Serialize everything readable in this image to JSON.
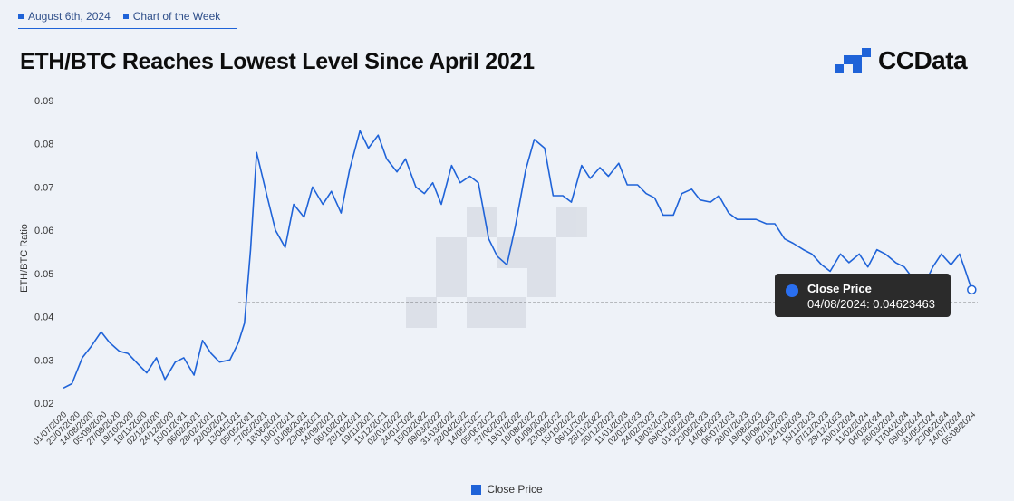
{
  "header": {
    "date": "August 6th, 2024",
    "tag": "Chart of the Week",
    "title": "ETH/BTC Reaches Lowest Level Since April 2021",
    "brand": "CCData"
  },
  "tooltip": {
    "series": "Close Price",
    "text": "04/08/2024: 0.04623463"
  },
  "colors": {
    "line": "#1f63d8",
    "accent": "#1f63d8",
    "tooltip_bg": "#2b2b2b"
  },
  "chart_data": {
    "type": "line",
    "title": "ETH/BTC Reaches Lowest Level Since April 2021",
    "ylabel": "ETH/BTC Ratio",
    "xlabel": "",
    "ylim": [
      0.02,
      0.09
    ],
    "yticks": [
      "0.02",
      "0.03",
      "0.04",
      "0.05",
      "0.06",
      "0.07",
      "0.08",
      "0.09"
    ],
    "legend": "bottom-center",
    "grid": false,
    "reference_line": 0.0432,
    "highlight": {
      "x": "04/08/2024",
      "y": 0.04623463
    },
    "xtick_labels": [
      "01/07/2020",
      "23/07/2020",
      "14/08/2020",
      "05/09/2020",
      "27/09/2020",
      "19/10/2020",
      "10/11/2020",
      "02/12/2020",
      "24/12/2020",
      "15/01/2021",
      "06/02/2021",
      "28/02/2021",
      "22/03/2021",
      "13/04/2021",
      "05/05/2021",
      "27/05/2021",
      "18/06/2021",
      "10/07/2021",
      "01/08/2021",
      "23/08/2021",
      "14/09/2021",
      "06/10/2021",
      "28/10/2021",
      "19/11/2021",
      "11/12/2021",
      "02/01/2022",
      "24/01/2022",
      "15/02/2022",
      "09/03/2022",
      "31/03/2022",
      "22/04/2022",
      "14/05/2022",
      "05/06/2022",
      "27/06/2022",
      "19/07/2022",
      "10/08/2022",
      "01/09/2022",
      "23/09/2022",
      "15/10/2022",
      "06/11/2022",
      "28/11/2022",
      "20/12/2022",
      "11/01/2023",
      "02/02/2023",
      "24/02/2023",
      "18/03/2023",
      "09/04/2023",
      "01/05/2023",
      "23/05/2023",
      "14/06/2023",
      "06/07/2023",
      "28/07/2023",
      "19/08/2023",
      "10/09/2023",
      "02/10/2023",
      "24/10/2023",
      "15/11/2023",
      "07/12/2023",
      "29/12/2023",
      "20/01/2024",
      "11/02/2024",
      "04/03/2024",
      "26/03/2024",
      "17/04/2024",
      "09/05/2024",
      "31/05/2024",
      "22/06/2024",
      "14/07/2024",
      "05/08/2024"
    ],
    "series": [
      {
        "name": "Close Price",
        "x": [
          "01/07/2020",
          "15/07/2020",
          "01/08/2020",
          "15/08/2020",
          "01/09/2020",
          "15/09/2020",
          "01/10/2020",
          "15/10/2020",
          "01/11/2020",
          "15/11/2020",
          "01/12/2020",
          "15/12/2020",
          "01/01/2021",
          "15/01/2021",
          "01/02/2021",
          "15/02/2021",
          "01/03/2021",
          "15/03/2021",
          "01/04/2021",
          "15/04/2021",
          "25/04/2021",
          "05/05/2021",
          "15/05/2021",
          "01/06/2021",
          "15/06/2021",
          "01/07/2021",
          "15/07/2021",
          "01/08/2021",
          "15/08/2021",
          "01/09/2021",
          "15/09/2021",
          "01/10/2021",
          "15/10/2021",
          "01/11/2021",
          "15/11/2021",
          "01/12/2021",
          "15/12/2021",
          "01/01/2022",
          "15/01/2022",
          "01/02/2022",
          "15/02/2022",
          "01/03/2022",
          "15/03/2022",
          "01/04/2022",
          "15/04/2022",
          "01/05/2022",
          "15/05/2022",
          "01/06/2022",
          "15/06/2022",
          "01/07/2022",
          "15/07/2022",
          "01/08/2022",
          "15/08/2022",
          "01/09/2022",
          "15/09/2022",
          "01/10/2022",
          "15/10/2022",
          "01/11/2022",
          "15/11/2022",
          "01/12/2022",
          "15/12/2022",
          "01/01/2023",
          "15/01/2023",
          "01/02/2023",
          "15/02/2023",
          "01/03/2023",
          "15/03/2023",
          "01/04/2023",
          "15/04/2023",
          "01/05/2023",
          "15/05/2023",
          "01/06/2023",
          "15/06/2023",
          "01/07/2023",
          "15/07/2023",
          "01/08/2023",
          "15/08/2023",
          "01/09/2023",
          "15/09/2023",
          "01/10/2023",
          "15/10/2023",
          "01/11/2023",
          "15/11/2023",
          "01/12/2023",
          "15/12/2023",
          "01/01/2024",
          "15/01/2024",
          "01/02/2024",
          "15/02/2024",
          "01/03/2024",
          "15/03/2024",
          "01/04/2024",
          "15/04/2024",
          "01/05/2024",
          "15/05/2024",
          "01/06/2024",
          "15/06/2024",
          "01/07/2024",
          "15/07/2024",
          "25/07/2024",
          "04/08/2024"
        ],
        "values": [
          0.0235,
          0.0245,
          0.0305,
          0.033,
          0.0365,
          0.034,
          0.032,
          0.0315,
          0.029,
          0.027,
          0.0305,
          0.0255,
          0.0295,
          0.0305,
          0.0265,
          0.0345,
          0.0315,
          0.0295,
          0.03,
          0.034,
          0.0385,
          0.0555,
          0.078,
          0.068,
          0.06,
          0.056,
          0.066,
          0.063,
          0.07,
          0.066,
          0.069,
          0.064,
          0.074,
          0.083,
          0.079,
          0.082,
          0.0765,
          0.0735,
          0.0765,
          0.07,
          0.0685,
          0.071,
          0.066,
          0.075,
          0.071,
          0.0725,
          0.071,
          0.058,
          0.054,
          0.052,
          0.061,
          0.074,
          0.081,
          0.079,
          0.068,
          0.068,
          0.0665,
          0.075,
          0.072,
          0.0745,
          0.0725,
          0.0755,
          0.0705,
          0.0705,
          0.0685,
          0.0675,
          0.0635,
          0.0635,
          0.0685,
          0.0695,
          0.067,
          0.0665,
          0.068,
          0.064,
          0.0625,
          0.0625,
          0.0625,
          0.0615,
          0.0615,
          0.058,
          0.057,
          0.0555,
          0.0545,
          0.052,
          0.0505,
          0.0545,
          0.0525,
          0.0545,
          0.0515,
          0.0555,
          0.0545,
          0.0525,
          0.0515,
          0.0485,
          0.0465,
          0.0515,
          0.0545,
          0.052,
          0.0545,
          0.0505,
          0.04623463
        ]
      }
    ]
  }
}
